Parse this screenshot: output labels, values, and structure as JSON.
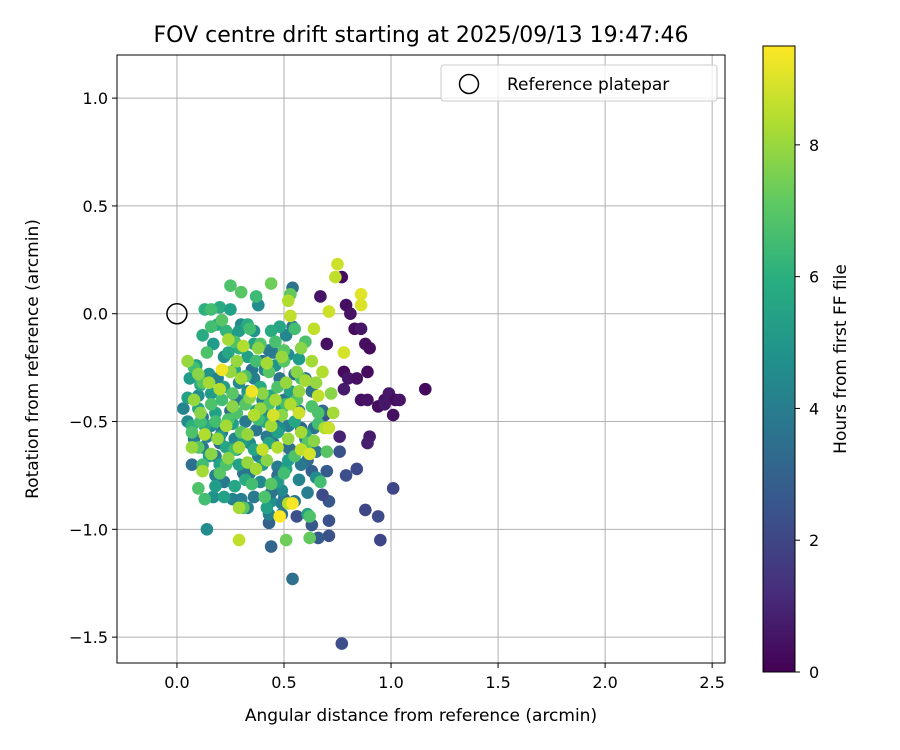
{
  "chart_data": {
    "type": "scatter",
    "title": "FOV centre drift starting at 2025/09/13 19:47:46",
    "xlabel": "Angular distance from reference (arcmin)",
    "ylabel": "Rotation from reference (arcmin)",
    "colorbar_label": "Hours from first FF file",
    "xlim": [
      -0.28,
      2.56
    ],
    "ylim": [
      -1.62,
      1.2
    ],
    "x_ticks": [
      "0.0",
      "0.5",
      "1.0",
      "1.5",
      "2.0",
      "2.5"
    ],
    "y_ticks": [
      "1.0",
      "0.5",
      "0.0",
      "−0.5",
      "−1.0",
      "−1.5"
    ],
    "colorbar_ticks": [
      "0",
      "2",
      "4",
      "6",
      "8"
    ],
    "colorbar_range": [
      0,
      9.5
    ],
    "grid": true,
    "legend": {
      "label": "Reference platepar",
      "position": "top-right"
    },
    "reference_point": {
      "x": 0.0,
      "y": 0.0
    },
    "points": [
      [
        0.77,
        0.17,
        0.3
      ],
      [
        0.79,
        0.04,
        0.4
      ],
      [
        0.81,
        0.0,
        0.5
      ],
      [
        0.83,
        -0.07,
        0.3
      ],
      [
        0.86,
        -0.07,
        0.6
      ],
      [
        0.88,
        -0.14,
        0.4
      ],
      [
        0.9,
        -0.16,
        0.3
      ],
      [
        0.67,
        0.08,
        0.5
      ],
      [
        0.7,
        -0.14,
        0.4
      ],
      [
        0.78,
        -0.27,
        0.3
      ],
      [
        0.8,
        -0.3,
        0.6
      ],
      [
        0.84,
        -0.3,
        0.4
      ],
      [
        0.89,
        -0.27,
        0.3
      ],
      [
        0.78,
        -0.35,
        0.7
      ],
      [
        0.86,
        -0.4,
        0.4
      ],
      [
        0.89,
        -0.4,
        0.5
      ],
      [
        0.94,
        -0.43,
        0.3
      ],
      [
        0.97,
        -0.4,
        0.4
      ],
      [
        0.99,
        -0.37,
        0.6
      ],
      [
        1.02,
        -0.4,
        0.3
      ],
      [
        1.04,
        -0.4,
        0.5
      ],
      [
        1.01,
        -0.47,
        0.4
      ],
      [
        0.97,
        -0.42,
        0.6
      ],
      [
        1.16,
        -0.35,
        0.3
      ],
      [
        0.9,
        -0.57,
        0.7
      ],
      [
        0.89,
        -0.6,
        0.8
      ],
      [
        0.76,
        -0.57,
        0.9
      ],
      [
        0.76,
        -0.64,
        2.4
      ],
      [
        0.84,
        -0.72,
        2.1
      ],
      [
        0.79,
        -0.75,
        2.3
      ],
      [
        0.71,
        -0.87,
        2.6
      ],
      [
        0.68,
        -0.84,
        2.2
      ],
      [
        0.88,
        -0.91,
        2.0
      ],
      [
        0.94,
        -0.94,
        2.2
      ],
      [
        1.01,
        -0.81,
        2.0
      ],
      [
        0.95,
        -1.05,
        2.0
      ],
      [
        0.71,
        -1.03,
        2.4
      ],
      [
        0.66,
        -1.04,
        2.7
      ],
      [
        0.71,
        -0.96,
        2.4
      ],
      [
        0.63,
        -0.98,
        2.6
      ],
      [
        0.56,
        -0.94,
        2.3
      ],
      [
        0.77,
        -1.53,
        2.3
      ],
      [
        0.54,
        -1.23,
        3.5
      ],
      [
        0.44,
        -1.08,
        3.1
      ],
      [
        0.43,
        -0.97,
        3.0
      ],
      [
        0.63,
        -0.73,
        2.9
      ],
      [
        0.5,
        -0.86,
        3.2
      ],
      [
        0.69,
        -0.47,
        2.5
      ],
      [
        0.58,
        -0.53,
        3.0
      ],
      [
        0.7,
        -0.73,
        2.7
      ],
      [
        0.61,
        -0.68,
        3.3
      ],
      [
        0.03,
        -0.44,
        4.3
      ],
      [
        0.07,
        -0.7,
        3.4
      ],
      [
        0.14,
        -1.0,
        4.6
      ],
      [
        0.05,
        -0.5,
        4.6
      ],
      [
        0.08,
        -0.58,
        4.1
      ],
      [
        0.12,
        -0.62,
        3.7
      ],
      [
        0.16,
        -0.52,
        4.5
      ],
      [
        0.18,
        -0.75,
        4.2
      ],
      [
        0.22,
        -0.78,
        3.8
      ],
      [
        0.17,
        -0.85,
        4.8
      ],
      [
        0.3,
        -0.86,
        4.0
      ],
      [
        0.33,
        -0.9,
        4.2
      ],
      [
        0.36,
        -0.85,
        3.9
      ],
      [
        0.39,
        -0.78,
        4.5
      ],
      [
        0.44,
        -0.87,
        4.8
      ],
      [
        0.43,
        -0.93,
        4.2
      ],
      [
        0.49,
        -0.93,
        3.8
      ],
      [
        0.49,
        -0.82,
        4.5
      ],
      [
        0.47,
        -0.71,
        4.0
      ],
      [
        0.52,
        -0.62,
        3.6
      ],
      [
        0.45,
        -0.6,
        3.5
      ],
      [
        0.57,
        -0.77,
        4.3
      ],
      [
        0.55,
        -0.87,
        3.8
      ],
      [
        0.61,
        -0.83,
        4.0
      ],
      [
        0.65,
        -0.76,
        4.6
      ],
      [
        0.47,
        -0.75,
        3.4
      ],
      [
        0.39,
        -0.65,
        3.6
      ],
      [
        0.32,
        -0.5,
        3.9
      ],
      [
        0.25,
        -0.45,
        3.4
      ],
      [
        0.29,
        -0.32,
        4.5
      ],
      [
        0.35,
        -0.26,
        3.8
      ],
      [
        0.4,
        -0.22,
        3.5
      ],
      [
        0.45,
        -0.18,
        4.0
      ],
      [
        0.54,
        -0.06,
        3.8
      ],
      [
        0.54,
        0.12,
        3.6
      ],
      [
        0.51,
        -0.1,
        4.4
      ],
      [
        0.55,
        -0.28,
        3.5
      ],
      [
        0.6,
        -0.3,
        3.4
      ],
      [
        0.63,
        -0.36,
        3.6
      ],
      [
        0.68,
        -0.45,
        3.3
      ],
      [
        0.64,
        -0.53,
        3.6
      ],
      [
        0.57,
        -0.45,
        3.9
      ],
      [
        0.5,
        -0.4,
        3.8
      ],
      [
        0.46,
        -0.48,
        3.5
      ],
      [
        0.41,
        -0.46,
        4.4
      ],
      [
        0.37,
        -0.54,
        3.7
      ],
      [
        0.34,
        -0.6,
        4.5
      ],
      [
        0.28,
        -0.63,
        4.1
      ],
      [
        0.24,
        -0.68,
        4.6
      ],
      [
        0.2,
        -0.6,
        3.5
      ],
      [
        0.14,
        -0.57,
        4.4
      ],
      [
        0.12,
        -0.48,
        3.6
      ],
      [
        0.1,
        -0.38,
        4.7
      ],
      [
        0.15,
        -0.28,
        4.9
      ],
      [
        0.19,
        -0.3,
        4.2
      ],
      [
        0.22,
        -0.2,
        4.6
      ],
      [
        0.25,
        -0.1,
        4.8
      ],
      [
        0.3,
        -0.05,
        4.5
      ],
      [
        0.36,
        -0.08,
        4.8
      ],
      [
        0.38,
        0.04,
        4.6
      ],
      [
        0.43,
        -0.17,
        3.9
      ],
      [
        0.48,
        -0.3,
        3.6
      ],
      [
        0.31,
        -0.74,
        3.6
      ],
      [
        0.26,
        -0.86,
        4.2
      ],
      [
        0.42,
        -0.57,
        3.9
      ],
      [
        0.53,
        -0.63,
        3.5
      ],
      [
        0.58,
        -0.7,
        3.8
      ],
      [
        0.38,
        -0.66,
        4.1
      ],
      [
        0.34,
        -0.74,
        3.8
      ],
      [
        0.44,
        -0.83,
        3.6
      ],
      [
        0.49,
        -0.88,
        4.0
      ],
      [
        0.21,
        -0.55,
        3.8
      ],
      [
        0.27,
        -0.58,
        4.4
      ],
      [
        0.18,
        -0.66,
        4.0
      ],
      [
        0.4,
        -0.4,
        4.2
      ],
      [
        0.36,
        -0.3,
        4.1
      ],
      [
        0.28,
        -0.4,
        3.8
      ],
      [
        0.52,
        -0.52,
        4.0
      ],
      [
        0.6,
        -0.58,
        3.9
      ],
      [
        0.65,
        -0.64,
        3.7
      ],
      [
        0.48,
        -0.53,
        4.6
      ],
      [
        0.33,
        -0.36,
        4.7
      ],
      [
        0.41,
        -0.26,
        4.4
      ],
      [
        0.46,
        -0.24,
        4.9
      ],
      [
        0.52,
        -0.19,
        4.7
      ],
      [
        0.13,
        0.02,
        6.0
      ],
      [
        0.2,
        0.03,
        5.8
      ],
      [
        0.25,
        0.02,
        5.4
      ],
      [
        0.19,
        -0.05,
        5.6
      ],
      [
        0.23,
        -0.08,
        6.2
      ],
      [
        0.29,
        -0.08,
        5.2
      ],
      [
        0.33,
        -0.05,
        5.8
      ],
      [
        0.36,
        -0.14,
        5.4
      ],
      [
        0.29,
        -0.16,
        6.0
      ],
      [
        0.24,
        -0.18,
        5.6
      ],
      [
        0.17,
        -0.14,
        5.2
      ],
      [
        0.12,
        -0.1,
        5.8
      ],
      [
        0.09,
        -0.24,
        5.4
      ],
      [
        0.11,
        -0.33,
        5.6
      ],
      [
        0.16,
        -0.37,
        5.2
      ],
      [
        0.18,
        -0.46,
        5.4
      ],
      [
        0.13,
        -0.52,
        5.8
      ],
      [
        0.07,
        -0.52,
        6.0
      ],
      [
        0.05,
        -0.39,
        5.4
      ],
      [
        0.06,
        -0.3,
        5.2
      ],
      [
        0.1,
        -0.44,
        5.6
      ],
      [
        0.2,
        -0.57,
        5.2
      ],
      [
        0.23,
        -0.62,
        5.6
      ],
      [
        0.29,
        -0.7,
        5.4
      ],
      [
        0.27,
        -0.8,
        5.6
      ],
      [
        0.22,
        -0.85,
        5.4
      ],
      [
        0.18,
        -0.8,
        5.2
      ],
      [
        0.32,
        -0.77,
        5.8
      ],
      [
        0.4,
        -0.7,
        5.2
      ],
      [
        0.43,
        -0.6,
        5.6
      ],
      [
        0.37,
        -0.45,
        5.4
      ],
      [
        0.33,
        -0.38,
        5.2
      ],
      [
        0.39,
        -0.34,
        5.8
      ],
      [
        0.44,
        -0.38,
        5.6
      ],
      [
        0.49,
        -0.44,
        5.2
      ],
      [
        0.55,
        -0.5,
        5.6
      ],
      [
        0.47,
        -0.55,
        5.4
      ],
      [
        0.51,
        -0.72,
        5.6
      ],
      [
        0.47,
        -0.78,
        5.2
      ],
      [
        0.42,
        -0.9,
        5.4
      ],
      [
        0.61,
        -0.93,
        5.4
      ],
      [
        0.6,
        -0.56,
        5.6
      ],
      [
        0.53,
        -0.36,
        5.4
      ],
      [
        0.57,
        -0.21,
        5.2
      ],
      [
        0.48,
        -0.06,
        5.6
      ],
      [
        0.44,
        -0.08,
        5.8
      ],
      [
        0.33,
        -0.2,
        5.4
      ],
      [
        0.27,
        -0.26,
        5.6
      ],
      [
        0.22,
        -0.34,
        5.2
      ],
      [
        0.26,
        -0.51,
        5.4
      ],
      [
        0.31,
        -0.59,
        5.2
      ],
      [
        0.36,
        -0.63,
        5.6
      ],
      [
        0.2,
        -0.7,
        5.5
      ],
      [
        0.15,
        -0.66,
        5.3
      ],
      [
        0.41,
        -0.5,
        5.7
      ],
      [
        0.52,
        -0.68,
        5.3
      ],
      [
        0.16,
        0.02,
        6.6
      ],
      [
        0.25,
        0.13,
        6.8
      ],
      [
        0.3,
        0.1,
        7.0
      ],
      [
        0.37,
        0.08,
        6.5
      ],
      [
        0.44,
        0.14,
        7.4
      ],
      [
        0.53,
        0.09,
        7.2
      ],
      [
        0.55,
        -0.07,
        6.6
      ],
      [
        0.6,
        -0.13,
        6.8
      ],
      [
        0.5,
        -0.17,
        7.0
      ],
      [
        0.46,
        -0.13,
        6.7
      ],
      [
        0.39,
        -0.14,
        6.9
      ],
      [
        0.34,
        -0.07,
        6.6
      ],
      [
        0.27,
        -0.13,
        6.8
      ],
      [
        0.21,
        -0.03,
        7.0
      ],
      [
        0.16,
        -0.06,
        6.6
      ],
      [
        0.14,
        -0.18,
        6.8
      ],
      [
        0.08,
        -0.25,
        6.6
      ],
      [
        0.12,
        -0.32,
        7.0
      ],
      [
        0.16,
        -0.42,
        6.8
      ],
      [
        0.11,
        -0.5,
        6.6
      ],
      [
        0.07,
        -0.55,
        6.8
      ],
      [
        0.1,
        -0.62,
        7.0
      ],
      [
        0.12,
        -0.7,
        6.6
      ],
      [
        0.1,
        -0.81,
        6.8
      ],
      [
        0.13,
        -0.86,
        6.6
      ],
      [
        0.2,
        -0.74,
        7.0
      ],
      [
        0.23,
        -0.7,
        6.8
      ],
      [
        0.27,
        -0.63,
        6.6
      ],
      [
        0.3,
        -0.55,
        7.0
      ],
      [
        0.24,
        -0.49,
        6.8
      ],
      [
        0.21,
        -0.4,
        6.6
      ],
      [
        0.26,
        -0.37,
        7.0
      ],
      [
        0.32,
        -0.29,
        6.8
      ],
      [
        0.37,
        -0.22,
        6.6
      ],
      [
        0.43,
        -0.27,
        7.0
      ],
      [
        0.47,
        -0.34,
        6.8
      ],
      [
        0.51,
        -0.42,
        6.6
      ],
      [
        0.56,
        -0.4,
        7.0
      ],
      [
        0.63,
        -0.43,
        6.8
      ],
      [
        0.66,
        -0.51,
        6.6
      ],
      [
        0.61,
        -0.6,
        7.0
      ],
      [
        0.55,
        -0.66,
        6.8
      ],
      [
        0.5,
        -0.74,
        6.6
      ],
      [
        0.44,
        -0.79,
        7.0
      ],
      [
        0.41,
        -0.85,
        6.8
      ],
      [
        0.35,
        -0.79,
        6.6
      ],
      [
        0.31,
        -0.9,
        7.0
      ],
      [
        0.51,
        -1.05,
        7.4
      ],
      [
        0.62,
        -1.04,
        7.2
      ],
      [
        0.62,
        -0.94,
        6.8
      ],
      [
        0.67,
        -0.78,
        6.6
      ],
      [
        0.7,
        -0.64,
        7.0
      ],
      [
        0.66,
        -0.46,
        6.8
      ],
      [
        0.58,
        -0.3,
        6.6
      ],
      [
        0.5,
        -0.22,
        7.0
      ],
      [
        0.43,
        -0.42,
        6.8
      ],
      [
        0.38,
        -0.49,
        6.6
      ],
      [
        0.32,
        -0.42,
        7.0
      ],
      [
        0.28,
        -0.46,
        6.8
      ],
      [
        0.18,
        -0.5,
        6.6
      ],
      [
        0.05,
        -0.22,
        8.0
      ],
      [
        0.1,
        -0.28,
        7.8
      ],
      [
        0.15,
        -0.32,
        8.2
      ],
      [
        0.08,
        -0.4,
        8.0
      ],
      [
        0.11,
        -0.46,
        7.8
      ],
      [
        0.13,
        -0.56,
        8.4
      ],
      [
        0.07,
        -0.62,
        8.0
      ],
      [
        0.12,
        -0.73,
        8.2
      ],
      [
        0.16,
        -0.65,
        7.8
      ],
      [
        0.19,
        -0.58,
        8.0
      ],
      [
        0.23,
        -0.52,
        8.2
      ],
      [
        0.26,
        -0.43,
        7.8
      ],
      [
        0.2,
        -0.35,
        8.4
      ],
      [
        0.25,
        -0.27,
        8.0
      ],
      [
        0.3,
        -0.3,
        8.2
      ],
      [
        0.34,
        -0.39,
        7.8
      ],
      [
        0.39,
        -0.44,
        8.0
      ],
      [
        0.44,
        -0.52,
        8.2
      ],
      [
        0.49,
        -0.47,
        7.8
      ],
      [
        0.53,
        -0.42,
        8.4
      ],
      [
        0.57,
        -0.36,
        8.0
      ],
      [
        0.6,
        -0.31,
        8.2
      ],
      [
        0.56,
        -0.27,
        7.8
      ],
      [
        0.51,
        -0.32,
        8.0
      ],
      [
        0.46,
        -0.4,
        8.2
      ],
      [
        0.4,
        -0.37,
        7.8
      ],
      [
        0.36,
        -0.47,
        8.4
      ],
      [
        0.33,
        -0.56,
        8.0
      ],
      [
        0.29,
        -0.62,
        8.2
      ],
      [
        0.24,
        -0.67,
        7.8
      ],
      [
        0.33,
        -0.69,
        8.0
      ],
      [
        0.37,
        -0.72,
        8.2
      ],
      [
        0.42,
        -0.68,
        7.8
      ],
      [
        0.47,
        -0.62,
        8.4
      ],
      [
        0.52,
        -0.58,
        8.0
      ],
      [
        0.58,
        -0.55,
        8.2
      ],
      [
        0.64,
        -0.59,
        7.8
      ],
      [
        0.69,
        -0.53,
        8.4
      ],
      [
        0.73,
        -0.46,
        8.2
      ],
      [
        0.72,
        -0.37,
        7.8
      ],
      [
        0.65,
        -0.32,
        8.0
      ],
      [
        0.68,
        -0.27,
        8.4
      ],
      [
        0.63,
        -0.22,
        8.2
      ],
      [
        0.58,
        -0.16,
        7.8
      ],
      [
        0.49,
        -0.2,
        8.0
      ],
      [
        0.42,
        -0.23,
        8.2
      ],
      [
        0.38,
        -0.16,
        7.8
      ],
      [
        0.31,
        -0.15,
        8.4
      ],
      [
        0.28,
        -0.22,
        8.0
      ],
      [
        0.24,
        -0.12,
        8.2
      ],
      [
        0.29,
        -1.05,
        8.6
      ],
      [
        0.29,
        -0.9,
        8.2
      ],
      [
        0.52,
        -0.88,
        8.5
      ],
      [
        0.58,
        -0.63,
        8.6
      ],
      [
        0.53,
        -0.01,
        8.6
      ],
      [
        0.52,
        0.06,
        8.4
      ],
      [
        0.71,
        0.01,
        8.8
      ],
      [
        0.75,
        0.23,
        8.8
      ],
      [
        0.74,
        0.17,
        8.6
      ],
      [
        0.78,
        -0.18,
        8.9
      ],
      [
        0.86,
        0.09,
        9.1
      ],
      [
        0.86,
        0.04,
        9.0
      ],
      [
        0.21,
        -0.26,
        9.3
      ],
      [
        0.35,
        -0.36,
        9.3
      ],
      [
        0.48,
        -0.94,
        9.5
      ],
      [
        0.54,
        -0.88,
        9.4
      ],
      [
        0.45,
        -0.47,
        8.9
      ],
      [
        0.62,
        -0.65,
        8.9
      ],
      [
        0.57,
        -0.46,
        8.8
      ],
      [
        0.71,
        -0.53,
        8.7
      ],
      [
        0.64,
        -0.07,
        8.6
      ],
      [
        0.66,
        -0.38,
        8.6
      ],
      [
        0.4,
        -0.63,
        8.7
      ]
    ]
  }
}
